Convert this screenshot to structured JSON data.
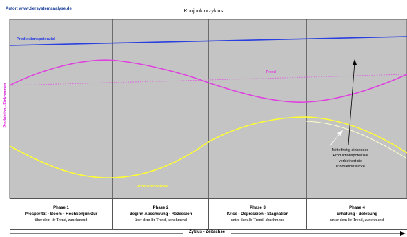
{
  "author": "Autor: www.tiersystemanalyse.de",
  "title": "Konjunkturzyklus",
  "chart_data": {
    "type": "line",
    "title": "Konjunkturzyklus",
    "ylabel": "Produktion - Einkommen",
    "xlabel": "Zyklus - Zeitachse",
    "series": [
      {
        "name": "Produktionspotenzial",
        "color": "#2a3fe0"
      },
      {
        "name": "Trend",
        "color": "#e040e0"
      },
      {
        "name": "Produktionslücke",
        "color": "#ffff30"
      }
    ],
    "grid": false
  },
  "labels": {
    "potential": "Produktionspotenzial",
    "trend": "Trend",
    "gap": "Produktionslücke"
  },
  "note": {
    "line1": "Mittelfristig sinkendes",
    "line2": "Produktionspotenzial",
    "line3": "verkleinert die",
    "line4": "Produktionslücke"
  },
  "phases": [
    {
      "title": "Phase 1",
      "desc": "Prosperität - Boom - Hochkonjunktur",
      "sub": "über dem lfr Trend, zunehmend"
    },
    {
      "title": "Phase 2",
      "desc": "Beginn Abschwung - Rezession",
      "sub": "über dem lfr Trend, abnehmend"
    },
    {
      "title": "Phase 3",
      "desc": "Krise - Depression - Stagnation",
      "sub": "unter dem lfr Trend, abnehmend"
    },
    {
      "title": "Phase 4",
      "desc": "Erholung - Belebung",
      "sub": "unter dem lfr Trend, zunehmend"
    }
  ],
  "colors": {
    "plot_bg": "#c4c4c4",
    "potential": "#2a3fe0",
    "trend": "#e040e0",
    "gap": "#ffff30",
    "divider": "#333333"
  }
}
